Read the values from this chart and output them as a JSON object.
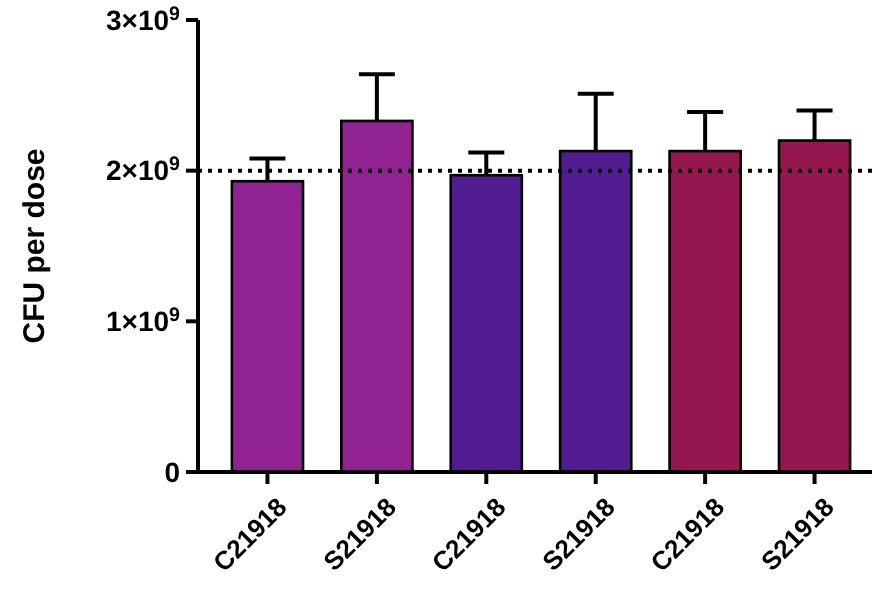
{
  "chart_data": {
    "type": "bar",
    "ylabel": "CFU per dose",
    "categories": [
      "C21918",
      "S21918",
      "C21918",
      "S21918",
      "C21918",
      "S21918"
    ],
    "values": [
      1930000000.0,
      2330000000.0,
      1970000000.0,
      2130000000.0,
      2130000000.0,
      2200000000.0
    ],
    "colors": [
      "#912291",
      "#912291",
      "#521c91",
      "#521c91",
      "#95174f",
      "#95174f"
    ],
    "errors": [
      [
        1930000000.0,
        2080000000.0
      ],
      [
        2330000000.0,
        2640000000.0
      ],
      [
        1970000000.0,
        2120000000.0
      ],
      [
        2130000000.0,
        2510000000.0
      ],
      [
        2130000000.0,
        2390000000.0
      ],
      [
        2200000000.0,
        2400000000.0
      ]
    ],
    "ylim": [
      0,
      3000000000.0
    ],
    "yticks": [
      {
        "value": 0,
        "label": "0"
      },
      {
        "value": 1000000000.0,
        "label": "1×10$^{9}$"
      },
      {
        "value": 2000000000.0,
        "label": "2×10$^{9}$"
      },
      {
        "value": 3000000000.0,
        "label": "3×10$^{9}$"
      }
    ],
    "ref_lines": [
      {
        "axis": "y",
        "value": 2000000000.0,
        "label": null,
        "line_style": "dotted",
        "color": "#000000"
      }
    ],
    "grid": false
  }
}
